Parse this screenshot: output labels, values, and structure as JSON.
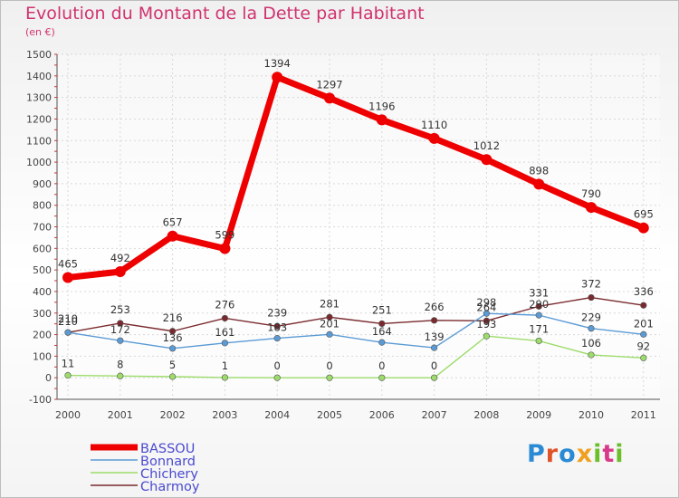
{
  "header": {
    "title": "Evolution du Montant de la Dette par Habitant",
    "subtitle": "(en €)"
  },
  "logo": {
    "text": "Proxiti",
    "colors": [
      "#2a8ad4",
      "#e0532a",
      "#2a8ad4",
      "#f0a020",
      "#6bbf2a",
      "#d83a8a",
      "#6bbf2a"
    ]
  },
  "chart_data": {
    "type": "line",
    "title": "Evolution du Montant de la Dette par Habitant",
    "ylabel": "(en €)",
    "xlabel": "",
    "ylim": [
      -100,
      1500
    ],
    "yticks": [
      -100,
      0,
      100,
      200,
      300,
      400,
      500,
      600,
      700,
      800,
      900,
      1000,
      1100,
      1200,
      1300,
      1400,
      1500
    ],
    "categories": [
      "2000",
      "2001",
      "2002",
      "2003",
      "2004",
      "2005",
      "2006",
      "2007",
      "2008",
      "2009",
      "2010",
      "2011"
    ],
    "grid": true,
    "legend": "bottom-left",
    "series": [
      {
        "name": "Charmoy",
        "color": "#7a2a2e",
        "values": [
          210,
          253,
          216,
          276,
          239,
          281,
          251,
          266,
          264,
          331,
          372,
          336
        ]
      },
      {
        "name": "Bonnard",
        "color": "#5b9bd5",
        "values": [
          210,
          172,
          136,
          161,
          183,
          201,
          164,
          139,
          298,
          290,
          229,
          201
        ]
      },
      {
        "name": "Chichery",
        "color": "#9ddc6b",
        "values": [
          11,
          8,
          5,
          1,
          0,
          0,
          0,
          0,
          193,
          171,
          106,
          92
        ]
      },
      {
        "name": "BASSOU",
        "color": "#ee0000",
        "values": [
          465,
          492,
          657,
          599,
          1394,
          1297,
          1196,
          1110,
          1012,
          898,
          790,
          695
        ]
      }
    ],
    "legend_order": [
      "BASSOU",
      "Bonnard",
      "Chichery",
      "Charmoy"
    ],
    "label_text": {
      "Charmoy": [
        "210",
        "253",
        "216",
        "276",
        "239",
        "281",
        "251",
        "266",
        "264",
        "331",
        "372",
        "336"
      ],
      "Bonnard": [
        "210",
        "172",
        "136",
        "161",
        "183",
        "201",
        "164",
        "139",
        "298",
        "290",
        "229",
        "201"
      ],
      "Chichery": [
        "11",
        "8",
        "5",
        "1",
        "0",
        "0",
        "0",
        "0",
        "193",
        "171",
        "106",
        "92"
      ],
      "BASSOU": [
        "465",
        "492",
        "657",
        "599",
        "1394",
        "1297",
        "1196",
        "1110",
        "1012",
        "898",
        "790",
        "695"
      ]
    }
  }
}
